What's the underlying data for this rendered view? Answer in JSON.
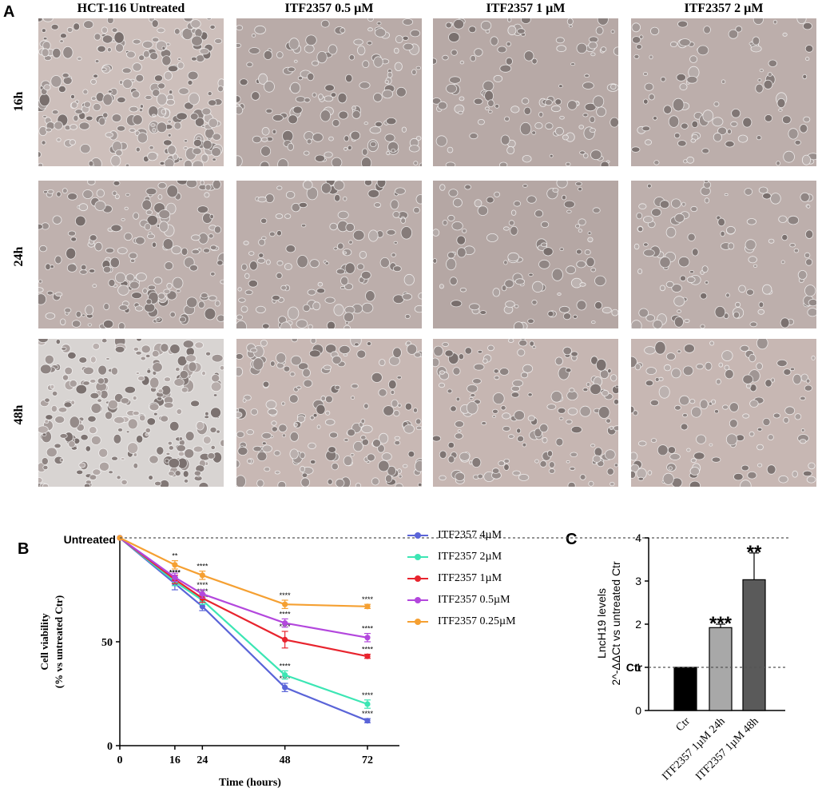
{
  "panels": {
    "a": "A",
    "b": "B",
    "c": "C"
  },
  "micrographs": {
    "columns": [
      "HCT-116 Untreated",
      "ITF2357 0.5 µM",
      "ITF2357 1 µM",
      "ITF2357 2 µM"
    ],
    "rows": [
      "16h",
      "24h",
      "48h"
    ]
  },
  "chart_data": [
    {
      "type": "line",
      "ylabel_line1": "Cell viability",
      "ylabel_line2": "(% vs untreated Ctr)",
      "xlabel": "Time (hours)",
      "x": [
        0,
        16,
        24,
        48,
        72
      ],
      "xticks": [
        "0",
        "16",
        "24",
        "48",
        "72"
      ],
      "yticks": [
        "0",
        "50"
      ],
      "ylim": [
        0,
        100
      ],
      "reference_line": {
        "y": 100,
        "label": "Untreated"
      },
      "grid": false,
      "legend": "right",
      "series": [
        {
          "name": "ITF2357 4µM",
          "color": "#5a64d8",
          "values": [
            100,
            78,
            67,
            28,
            12
          ],
          "errors": [
            0,
            3,
            2,
            2,
            1
          ],
          "stars": [
            "",
            "****",
            "****",
            "****",
            "****"
          ]
        },
        {
          "name": "ITF2357 2µM",
          "color": "#3ce6b4",
          "values": [
            100,
            79,
            70,
            34,
            20
          ],
          "errors": [
            0,
            2,
            2,
            2,
            2
          ],
          "stars": [
            "",
            "****",
            "****",
            "****",
            "****"
          ]
        },
        {
          "name": "ITF2357 1µM",
          "color": "#e8242e",
          "values": [
            100,
            80,
            71,
            51,
            43
          ],
          "errors": [
            0,
            2,
            2,
            4,
            1
          ],
          "stars": [
            "",
            "",
            "",
            "****",
            "****"
          ]
        },
        {
          "name": "ITF2357 0.5µM",
          "color": "#b347dd",
          "values": [
            100,
            81,
            73,
            59,
            52
          ],
          "errors": [
            0,
            2,
            2,
            2,
            2
          ],
          "stars": [
            "",
            "",
            "****",
            "****",
            "****"
          ]
        },
        {
          "name": "ITF2357 0.25µM",
          "color": "#f5a032",
          "values": [
            100,
            87,
            82,
            68,
            67
          ],
          "errors": [
            0,
            2,
            2,
            2,
            1
          ],
          "stars": [
            "",
            "**",
            "****",
            "****",
            "****"
          ]
        }
      ]
    },
    {
      "type": "bar",
      "ylabel_line1": "LncH19 levels",
      "ylabel_line2": "2^-ΔΔCt vs untreated Ctr",
      "categories": [
        "Ctr",
        "ITF2357 1µM 24h",
        "ITF2357 1µM 48h"
      ],
      "values": [
        1,
        1.92,
        3.03
      ],
      "errors": [
        0,
        0.08,
        0.62
      ],
      "colors": [
        "#000000",
        "#a8a8a8",
        "#5a5a5a"
      ],
      "significance": [
        "",
        "***",
        "**"
      ],
      "ylim": [
        0,
        4
      ],
      "yticks": [
        "0",
        "1",
        "2",
        "3",
        "4"
      ],
      "reference_line": {
        "y": 1,
        "label": "Ctr"
      }
    }
  ]
}
